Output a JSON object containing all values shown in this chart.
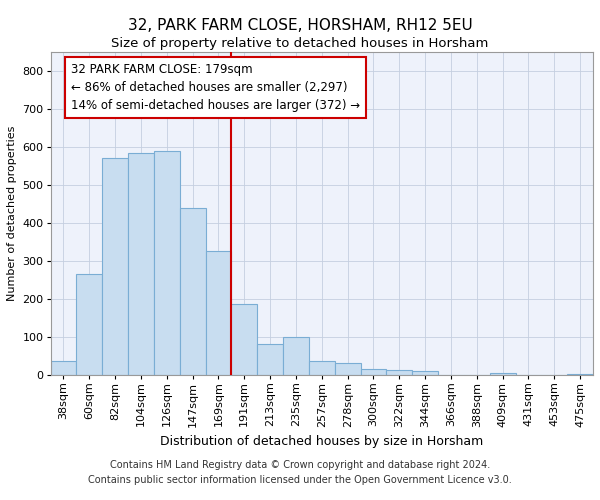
{
  "title1": "32, PARK FARM CLOSE, HORSHAM, RH12 5EU",
  "title2": "Size of property relative to detached houses in Horsham",
  "xlabel": "Distribution of detached houses by size in Horsham",
  "ylabel": "Number of detached properties",
  "categories": [
    "38sqm",
    "60sqm",
    "82sqm",
    "104sqm",
    "126sqm",
    "147sqm",
    "169sqm",
    "191sqm",
    "213sqm",
    "235sqm",
    "257sqm",
    "278sqm",
    "300sqm",
    "322sqm",
    "344sqm",
    "366sqm",
    "388sqm",
    "409sqm",
    "431sqm",
    "453sqm",
    "475sqm"
  ],
  "values": [
    37,
    265,
    570,
    585,
    590,
    440,
    325,
    185,
    80,
    100,
    37,
    30,
    15,
    13,
    10,
    0,
    0,
    5,
    0,
    0,
    3
  ],
  "bar_color": "#c8ddf0",
  "bar_edge_color": "#7aadd4",
  "vline_x_index": 7,
  "annotation_line1": "32 PARK FARM CLOSE: 179sqm",
  "annotation_line2": "← 86% of detached houses are smaller (2,297)",
  "annotation_line3": "14% of semi-detached houses are larger (372) →",
  "annotation_box_color": "#ffffff",
  "annotation_border_color": "#cc0000",
  "vline_color": "#cc0000",
  "ylim": [
    0,
    850
  ],
  "yticks": [
    0,
    100,
    200,
    300,
    400,
    500,
    600,
    700,
    800
  ],
  "bg_color": "#eef2fb",
  "fig_bg_color": "#ffffff",
  "footer1": "Contains HM Land Registry data © Crown copyright and database right 2024.",
  "footer2": "Contains public sector information licensed under the Open Government Licence v3.0.",
  "title1_fontsize": 11,
  "title2_fontsize": 9.5,
  "xlabel_fontsize": 9,
  "ylabel_fontsize": 8,
  "tick_fontsize": 8,
  "footer_fontsize": 7,
  "annot_fontsize": 8.5
}
